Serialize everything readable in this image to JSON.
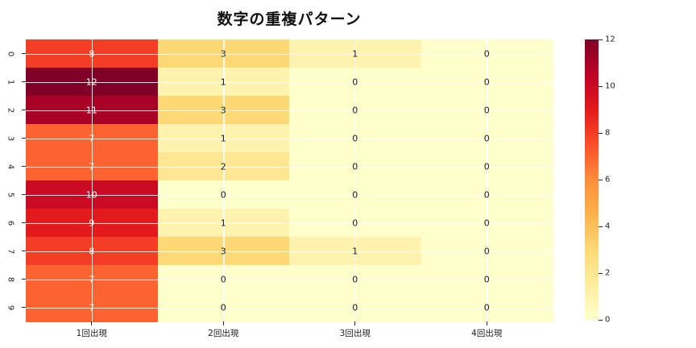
{
  "title": "数字の重複パターン",
  "chart_data": {
    "type": "heatmap",
    "title": "数字の重複パターン",
    "x_labels": [
      "1回出現",
      "2回出現",
      "3回出現",
      "4回出現"
    ],
    "y_labels": [
      "0",
      "1",
      "2",
      "3",
      "4",
      "5",
      "6",
      "7",
      "8",
      "9"
    ],
    "values": [
      [
        8,
        3,
        1,
        0
      ],
      [
        12,
        1,
        0,
        0
      ],
      [
        11,
        3,
        0,
        0
      ],
      [
        7,
        1,
        0,
        0
      ],
      [
        7,
        2,
        0,
        0
      ],
      [
        10,
        0,
        0,
        0
      ],
      [
        9,
        1,
        0,
        0
      ],
      [
        8,
        3,
        1,
        0
      ],
      [
        7,
        0,
        0,
        0
      ],
      [
        7,
        0,
        0,
        0
      ]
    ],
    "vmin": 0,
    "vmax": 12,
    "colormap": "YlOrRd",
    "colormap_stops": [
      "#ffffcc",
      "#ffeda0",
      "#fed976",
      "#feb24c",
      "#fd8d3c",
      "#fc4e2a",
      "#e31a1c",
      "#bd0026",
      "#800026"
    ],
    "colorbar_ticks": [
      0,
      2,
      4,
      6,
      8,
      10,
      12
    ],
    "grid": true,
    "gridline_color": "#ffffff",
    "annotation_color_light": "#ffffff",
    "annotation_color_dark": "#1a1a1a",
    "tick_color": "#262626",
    "legend_position": "right-colorbar",
    "axis_ranges": {
      "rows": 10,
      "cols": 4
    }
  }
}
